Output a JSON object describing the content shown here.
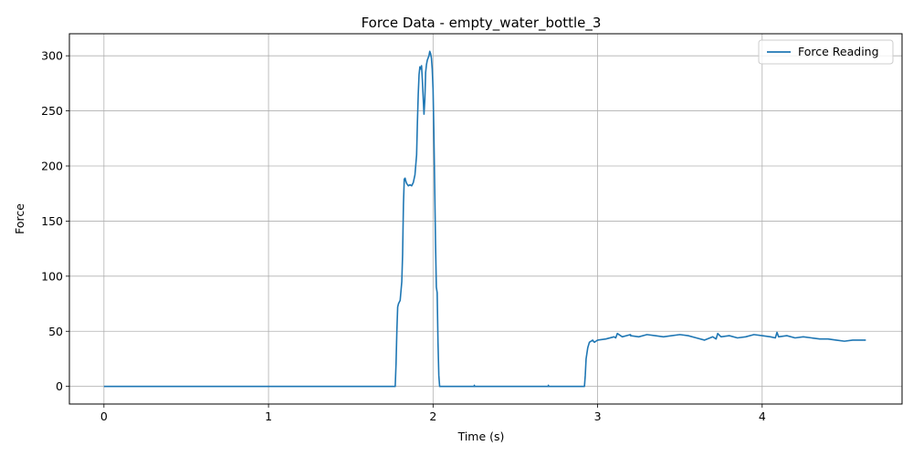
{
  "chart_data": {
    "type": "line",
    "title": "Force Data - empty_water_bottle_3",
    "xlabel": "Time (s)",
    "ylabel": "Force",
    "xlim": [
      -0.21,
      4.85
    ],
    "ylim": [
      -16,
      320
    ],
    "xticks": [
      0,
      1,
      2,
      3,
      4
    ],
    "yticks": [
      0,
      50,
      100,
      150,
      200,
      250,
      300
    ],
    "grid": true,
    "legend_position": "upper right",
    "series": [
      {
        "name": "Force Reading",
        "color": "#1f77b4",
        "x": [
          0,
          1.0,
          1.77,
          1.775,
          1.78,
          1.785,
          1.79,
          1.8,
          1.81,
          1.815,
          1.82,
          1.825,
          1.83,
          1.835,
          1.84,
          1.85,
          1.86,
          1.87,
          1.88,
          1.89,
          1.9,
          1.905,
          1.91,
          1.915,
          1.92,
          1.925,
          1.93,
          1.935,
          1.94,
          1.945,
          1.95,
          1.955,
          1.96,
          1.965,
          1.97,
          1.975,
          1.98,
          1.985,
          1.99,
          1.995,
          2.0,
          2.005,
          2.01,
          2.015,
          2.02,
          2.025,
          2.03,
          2.035,
          2.04,
          2.045,
          2.05,
          2.055,
          2.06,
          2.065,
          2.07,
          2.25,
          2.251,
          2.252,
          2.7,
          2.701,
          2.702,
          2.92,
          2.925,
          2.93,
          2.94,
          2.95,
          2.96,
          2.97,
          2.98,
          2.99,
          3.0,
          3.05,
          3.1,
          3.11,
          3.12,
          3.15,
          3.2,
          3.2,
          3.25,
          3.3,
          3.35,
          3.4,
          3.45,
          3.5,
          3.55,
          3.6,
          3.65,
          3.7,
          3.72,
          3.73,
          3.75,
          3.8,
          3.85,
          3.9,
          3.95,
          4.0,
          4.05,
          4.08,
          4.09,
          4.1,
          4.15,
          4.2,
          4.25,
          4.3,
          4.35,
          4.4,
          4.45,
          4.5,
          4.55,
          4.6,
          4.63
        ],
        "y": [
          0,
          0,
          0,
          20,
          50,
          72,
          75,
          78,
          95,
          120,
          165,
          188,
          189,
          186,
          184,
          182,
          183,
          182,
          185,
          192,
          210,
          240,
          265,
          283,
          290,
          288,
          291,
          278,
          262,
          247,
          260,
          285,
          292,
          296,
          298,
          300,
          304,
          302,
          298,
          288,
          270,
          230,
          180,
          130,
          90,
          85,
          40,
          10,
          0,
          0,
          0,
          0,
          0,
          0,
          0,
          0,
          1,
          0,
          0,
          1,
          0,
          0,
          10,
          25,
          35,
          40,
          41,
          42,
          40,
          41,
          42,
          43,
          45,
          44,
          48,
          45,
          47,
          46,
          45,
          47,
          46,
          45,
          46,
          47,
          46,
          44,
          42,
          45,
          43,
          48,
          45,
          46,
          44,
          45,
          47,
          46,
          45,
          44,
          49,
          45,
          46,
          44,
          45,
          44,
          43,
          43,
          42,
          41,
          42,
          42,
          42
        ]
      }
    ]
  }
}
